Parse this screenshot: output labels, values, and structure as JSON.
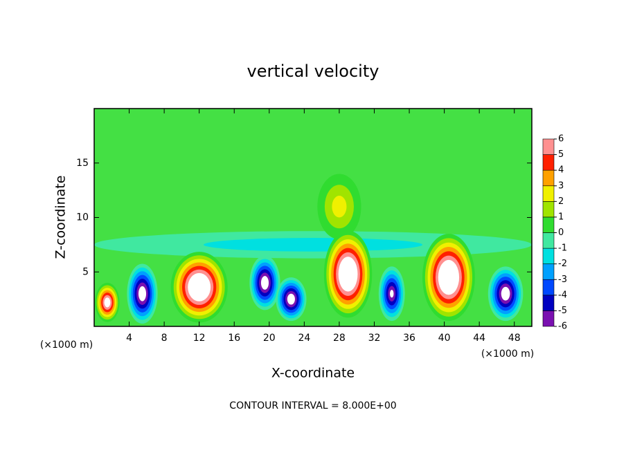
{
  "chart_data": {
    "type": "contour",
    "title": "vertical velocity",
    "xlabel": "X-coordinate",
    "ylabel": "Z-coordinate",
    "x_unit_label": "(×1000 m)",
    "note": "CONTOUR INTERVAL = 8.000E+00",
    "xlim": [
      0,
      50
    ],
    "ylim": [
      0,
      20
    ],
    "xticks": [
      4,
      8,
      12,
      16,
      20,
      24,
      28,
      32,
      36,
      40,
      44,
      48
    ],
    "yticks": [
      5,
      10,
      15
    ],
    "background_color": "#44e044",
    "colorbar": {
      "levels": [
        -6,
        -5,
        -4,
        -3,
        -2,
        -1,
        0,
        1,
        2,
        3,
        4,
        5,
        6
      ],
      "colors": [
        "#7a10b0",
        "#0000c0",
        "#0048ff",
        "#00a0ff",
        "#00e0e0",
        "#40e8a0",
        "#30dc30",
        "#a0e400",
        "#f0f000",
        "#ffa000",
        "#ff2000",
        "#ff9090"
      ],
      "over_color": "#ffffff"
    },
    "cores": [
      {
        "x": 25,
        "z": 7.5,
        "value": -2,
        "dx": 50,
        "dz": 2.5
      },
      {
        "x": 28,
        "z": 11,
        "value": 3,
        "dx": 5,
        "dz": 6
      },
      {
        "x": 1.5,
        "z": 2.2,
        "value": 8,
        "dx": 2.8,
        "dz": 3.6
      },
      {
        "x": 12,
        "z": 3.6,
        "value": 10,
        "dx": 6.5,
        "dz": 6.5
      },
      {
        "x": 29,
        "z": 4.8,
        "value": 10,
        "dx": 5.5,
        "dz": 8
      },
      {
        "x": 40.5,
        "z": 4.5,
        "value": 10,
        "dx": 6,
        "dz": 8
      },
      {
        "x": 5.5,
        "z": 3,
        "value": -8,
        "dx": 3.5,
        "dz": 5.5
      },
      {
        "x": 19.5,
        "z": 4,
        "value": -8,
        "dx": 3.5,
        "dz": 5
      },
      {
        "x": 22.5,
        "z": 2.5,
        "value": -8,
        "dx": 3.5,
        "dz": 4
      },
      {
        "x": 34,
        "z": 3,
        "value": -7,
        "dx": 3,
        "dz": 5
      },
      {
        "x": 47,
        "z": 3,
        "value": -8,
        "dx": 4,
        "dz": 5
      }
    ]
  }
}
